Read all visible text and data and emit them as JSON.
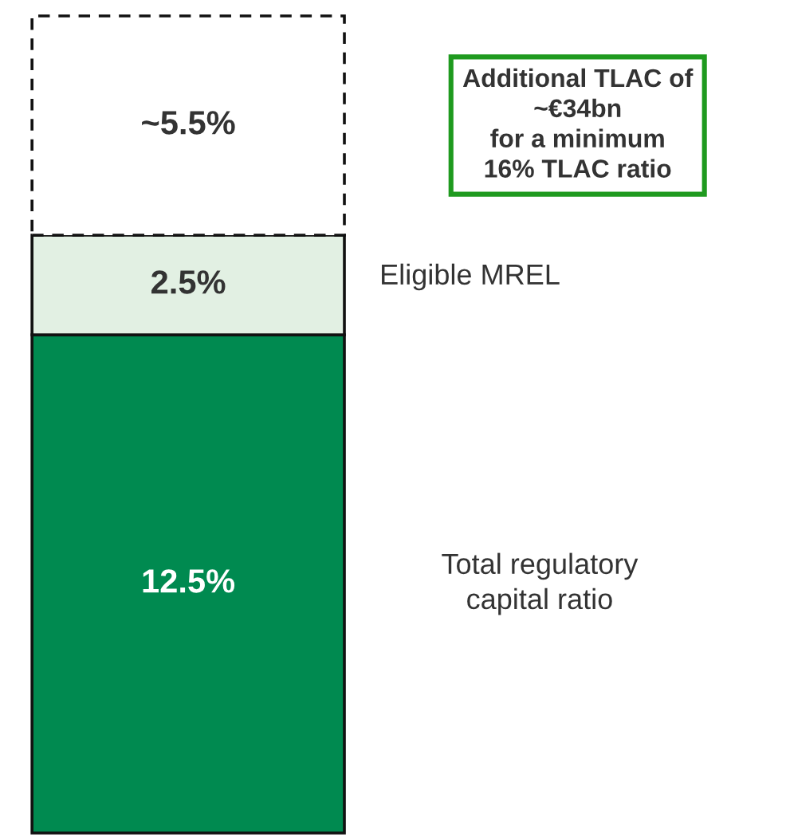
{
  "chart_data": {
    "type": "bar",
    "stacked": true,
    "legend": false,
    "categories": [
      null
    ],
    "series": [
      {
        "name": "Total regulatory capital ratio",
        "color": "#008a50",
        "values": [
          12.5
        ],
        "value_labels": [
          "12.5%"
        ]
      },
      {
        "name": "Eligible MREL",
        "color": "#e2f0e3",
        "values": [
          2.5
        ],
        "value_labels": [
          "2.5%"
        ]
      },
      {
        "color": "#ffffff",
        "values": [
          5.5
        ],
        "value_labels": [
          "~5.5%"
        ],
        "line_style": "dashed"
      }
    ],
    "annotations": [
      "Additional TLAC of\n~€34bn\nfor a minimum\n16% TLAC ratio"
    ]
  }
}
